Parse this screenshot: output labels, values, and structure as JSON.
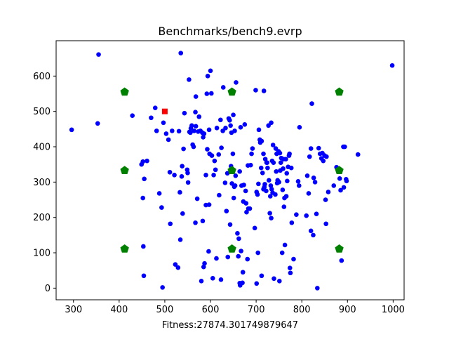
{
  "chart_data": {
    "type": "scatter",
    "title": "Benchmarks/bench9.evrp",
    "xlabel": "Fitness:27874.301749879647",
    "ylabel": "",
    "xlim": [
      262,
      1024
    ],
    "ylim": [
      -33,
      700
    ],
    "xticks": [
      300,
      400,
      500,
      600,
      700,
      800,
      900,
      1000
    ],
    "yticks": [
      0,
      100,
      200,
      300,
      400,
      500,
      600
    ],
    "grid": false,
    "legend": "none",
    "colors": {
      "customers": "#0000ff",
      "depot": "#ff0000",
      "stations": "#008000",
      "axes": "#000000"
    },
    "series": [
      {
        "marker": "circle",
        "color": "#0000ff",
        "points": [
          [
            296,
            448
          ],
          [
            353,
            466
          ],
          [
            355,
            661
          ],
          [
            429,
            488
          ],
          [
            449,
            350
          ],
          [
            452,
            358
          ],
          [
            452,
            255
          ],
          [
            453,
            118
          ],
          [
            454,
            35
          ],
          [
            455,
            309
          ],
          [
            461,
            360
          ],
          [
            470,
            482
          ],
          [
            479,
            510
          ],
          [
            482,
            445
          ],
          [
            488,
            268
          ],
          [
            493,
            228
          ],
          [
            495,
            2
          ],
          [
            497,
            468
          ],
          [
            503,
            437
          ],
          [
            508,
            420
          ],
          [
            511,
            328
          ],
          [
            512,
            182
          ],
          [
            516,
            445
          ],
          [
            521,
            320
          ],
          [
            523,
            67
          ],
          [
            529,
            58
          ],
          [
            531,
            444
          ],
          [
            533,
            271
          ],
          [
            534,
            137
          ],
          [
            535,
            665
          ],
          [
            537,
            316
          ],
          [
            538,
            345
          ],
          [
            539,
            211
          ],
          [
            541,
            394
          ],
          [
            543,
            495
          ],
          [
            549,
            335
          ],
          [
            550,
            326
          ],
          [
            551,
            299
          ],
          [
            553,
            590
          ],
          [
            554,
            442
          ],
          [
            556,
            440
          ],
          [
            557,
            452
          ],
          [
            559,
            460
          ],
          [
            561,
            406
          ],
          [
            563,
            400
          ],
          [
            564,
            445
          ],
          [
            567,
            185
          ],
          [
            567,
            498
          ],
          [
            568,
            542
          ],
          [
            568,
            458
          ],
          [
            571,
            253
          ],
          [
            573,
            443
          ],
          [
            575,
            485
          ],
          [
            578,
            445
          ],
          [
            580,
            20
          ],
          [
            582,
            440
          ],
          [
            583,
            190
          ],
          [
            584,
            427
          ],
          [
            585,
            60
          ],
          [
            586,
            437
          ],
          [
            587,
            70
          ],
          [
            590,
            320
          ],
          [
            590,
            235
          ],
          [
            592,
            550
          ],
          [
            593,
            393
          ],
          [
            594,
            600
          ],
          [
            596,
            104
          ],
          [
            597,
            236
          ],
          [
            597,
            448
          ],
          [
            598,
            380
          ],
          [
            600,
            615
          ],
          [
            602,
            551
          ],
          [
            603,
            375
          ],
          [
            605,
            28
          ],
          [
            607,
            320
          ],
          [
            609,
            360
          ],
          [
            611,
            335
          ],
          [
            613,
            84
          ],
          [
            614,
            453
          ],
          [
            618,
            378
          ],
          [
            619,
            263
          ],
          [
            622,
            476
          ],
          [
            623,
            24
          ],
          [
            624,
            397
          ],
          [
            627,
            445
          ],
          [
            628,
            568
          ],
          [
            632,
            298
          ],
          [
            633,
            453
          ],
          [
            635,
            218
          ],
          [
            637,
            325
          ],
          [
            638,
            88
          ],
          [
            640,
            480
          ],
          [
            642,
            475
          ],
          [
            643,
            180
          ],
          [
            644,
            460
          ],
          [
            645,
            345
          ],
          [
            646,
            440
          ],
          [
            647,
            296
          ],
          [
            649,
            380
          ],
          [
            650,
            490
          ],
          [
            651,
            255
          ],
          [
            652,
            287
          ],
          [
            653,
            445
          ],
          [
            654,
            290
          ],
          [
            655,
            318
          ],
          [
            656,
            582
          ],
          [
            659,
            155
          ],
          [
            661,
            90
          ],
          [
            662,
            140
          ],
          [
            664,
            14
          ],
          [
            664,
            330
          ],
          [
            665,
            8
          ],
          [
            666,
            455
          ],
          [
            667,
            105
          ],
          [
            668,
            290
          ],
          [
            670,
            15
          ],
          [
            671,
            45
          ],
          [
            672,
            245
          ],
          [
            673,
            292
          ],
          [
            675,
            463
          ],
          [
            677,
            275
          ],
          [
            678,
            240
          ],
          [
            679,
            215
          ],
          [
            681,
            82
          ],
          [
            682,
            347
          ],
          [
            683,
            225
          ],
          [
            686,
            225
          ],
          [
            688,
            348
          ],
          [
            690,
            380
          ],
          [
            692,
            395
          ],
          [
            697,
            170
          ],
          [
            699,
            560
          ],
          [
            701,
            13
          ],
          [
            701,
            272
          ],
          [
            703,
            265
          ],
          [
            704,
            100
          ],
          [
            705,
            295
          ],
          [
            706,
            448
          ],
          [
            708,
            420
          ],
          [
            709,
            412
          ],
          [
            711,
            340
          ],
          [
            712,
            35
          ],
          [
            712,
            416
          ],
          [
            714,
            326
          ],
          [
            716,
            280
          ],
          [
            716,
            380
          ],
          [
            717,
            558
          ],
          [
            718,
            286
          ],
          [
            719,
            294
          ],
          [
            720,
            365
          ],
          [
            722,
            275
          ],
          [
            723,
            355
          ],
          [
            724,
            355
          ],
          [
            725,
            340
          ],
          [
            727,
            460
          ],
          [
            728,
            305
          ],
          [
            730,
            212
          ],
          [
            731,
            260
          ],
          [
            732,
            290
          ],
          [
            733,
            198
          ],
          [
            733,
            468
          ],
          [
            734,
            280
          ],
          [
            735,
            360
          ],
          [
            736,
            270
          ],
          [
            737,
            405
          ],
          [
            738,
            355
          ],
          [
            739,
            27
          ],
          [
            742,
            265
          ],
          [
            743,
            395
          ],
          [
            744,
            330
          ],
          [
            745,
            380
          ],
          [
            746,
            297
          ],
          [
            747,
            305
          ],
          [
            749,
            387
          ],
          [
            750,
            300
          ],
          [
            751,
            20
          ],
          [
            752,
            382
          ],
          [
            753,
            333
          ],
          [
            754,
            355
          ],
          [
            755,
            368
          ],
          [
            757,
            100
          ],
          [
            758,
            278
          ],
          [
            759,
            338
          ],
          [
            760,
            365
          ],
          [
            761,
            230
          ],
          [
            762,
            255
          ],
          [
            763,
            122
          ],
          [
            765,
            365
          ],
          [
            766,
            260
          ],
          [
            767,
            325
          ],
          [
            768,
            303
          ],
          [
            770,
            343
          ],
          [
            772,
            375
          ],
          [
            773,
            380
          ],
          [
            774,
            57
          ],
          [
            775,
            43
          ],
          [
            777,
            340
          ],
          [
            778,
            185
          ],
          [
            782,
            82
          ],
          [
            788,
            208
          ],
          [
            792,
            302
          ],
          [
            794,
            290
          ],
          [
            795,
            455
          ],
          [
            810,
            205
          ],
          [
            812,
            318
          ],
          [
            815,
            268
          ],
          [
            817,
            372
          ],
          [
            820,
            395
          ],
          [
            820,
            162
          ],
          [
            822,
            522
          ],
          [
            825,
            150
          ],
          [
            826,
            312
          ],
          [
            829,
            300
          ],
          [
            832,
            210
          ],
          [
            834,
            0
          ],
          [
            837,
            396
          ],
          [
            840,
            380
          ],
          [
            843,
            367
          ],
          [
            845,
            382
          ],
          [
            847,
            360
          ],
          [
            850,
            375
          ],
          [
            852,
            250
          ],
          [
            853,
            182
          ],
          [
            854,
            372
          ],
          [
            858,
            272
          ],
          [
            870,
            290
          ],
          [
            876,
            342
          ],
          [
            883,
            310
          ],
          [
            885,
            277
          ],
          [
            887,
            78
          ],
          [
            891,
            400
          ],
          [
            892,
            285
          ],
          [
            894,
            400
          ],
          [
            897,
            308
          ],
          [
            898,
            303
          ],
          [
            923,
            378
          ],
          [
            998,
            630
          ]
        ]
      },
      {
        "marker": "square",
        "color": "#ff0000",
        "points": [
          [
            500,
            500
          ]
        ]
      },
      {
        "marker": "pentagon",
        "color": "#008000",
        "points": [
          [
            412,
            555
          ],
          [
            647,
            555
          ],
          [
            882,
            555
          ],
          [
            412,
            333
          ],
          [
            647,
            333
          ],
          [
            882,
            333
          ],
          [
            412,
            111
          ],
          [
            647,
            111
          ],
          [
            882,
            111
          ]
        ]
      }
    ]
  }
}
